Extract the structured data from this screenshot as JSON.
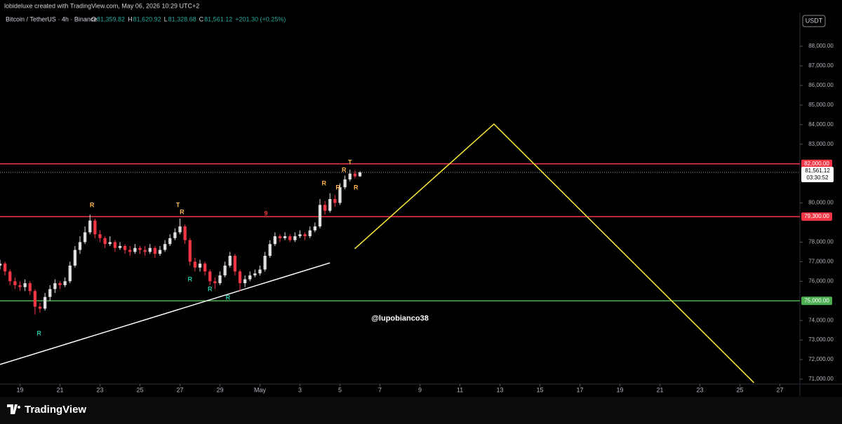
{
  "header": {
    "credit": "lobideluxe created with TradingView.com, May 06, 2026 10:29 UTC+2",
    "symbol": "Bitcoin / TetherUS · 4h · Binance",
    "ohlc": [
      {
        "key": "O",
        "value": "81,359.82"
      },
      {
        "key": "H",
        "value": "81,620.92"
      },
      {
        "key": "L",
        "value": "81,328.68"
      },
      {
        "key": "C",
        "value": "81,561.12"
      }
    ],
    "change": "+201.30 (+0.25%)",
    "currency": "USDT"
  },
  "chart_data": {
    "type": "candlestick",
    "up_color": "#e0e0e0",
    "down_color": "#f23645",
    "x": [
      18,
      18.25,
      18.5,
      18.75,
      19,
      19.25,
      19.5,
      19.75,
      20,
      20.25,
      20.5,
      20.75,
      21,
      21.25,
      21.5,
      21.75,
      22,
      22.25,
      22.5,
      22.75,
      23,
      23.25,
      23.5,
      23.75,
      24,
      24.25,
      24.5,
      24.75,
      25,
      25.25,
      25.5,
      25.75,
      26,
      26.25,
      26.5,
      26.75,
      27,
      27.25,
      27.5,
      27.75,
      28,
      28.25,
      28.5,
      28.75,
      29,
      29.25,
      29.5,
      29.75,
      30,
      30.25,
      30.5,
      30.75,
      31,
      31.25,
      31.5,
      31.75,
      32,
      32.25,
      32.5,
      32.75,
      33,
      33.25,
      33.5,
      33.75,
      34,
      34.25,
      34.5,
      34.75,
      35,
      35.25,
      35.5,
      35.75,
      36
    ],
    "open": [
      76800,
      76900,
      76500,
      76000,
      75800,
      75700,
      75900,
      75500,
      74700,
      74600,
      75200,
      75600,
      75900,
      75800,
      76000,
      76800,
      77600,
      78000,
      78500,
      79100,
      78400,
      78200,
      77900,
      78000,
      77700,
      77800,
      77600,
      77500,
      77700,
      77600,
      77500,
      77700,
      77400,
      77600,
      77900,
      78200,
      78500,
      78800,
      78100,
      77000,
      76700,
      76900,
      76500,
      76000,
      75900,
      76300,
      76800,
      77300,
      76500,
      75900,
      76100,
      76300,
      76400,
      76600,
      77300,
      77900,
      78300,
      78200,
      78300,
      78100,
      78300,
      78400,
      78300,
      78600,
      78800,
      79900,
      79600,
      80200,
      80000,
      80800,
      81200,
      81500,
      81359.82
    ],
    "high": [
      77100,
      77000,
      76600,
      76200,
      76000,
      76100,
      76000,
      75600,
      74900,
      75400,
      75800,
      76100,
      76000,
      76200,
      77000,
      77800,
      78300,
      78800,
      79400,
      79200,
      78600,
      78300,
      78300,
      78100,
      78000,
      77900,
      77800,
      77900,
      77800,
      77800,
      77900,
      77800,
      77800,
      78100,
      78400,
      78700,
      79200,
      78900,
      78200,
      77200,
      77100,
      77000,
      76600,
      76200,
      76500,
      77000,
      77500,
      77400,
      76600,
      76300,
      76500,
      76600,
      76800,
      77500,
      78100,
      78500,
      78400,
      78500,
      78400,
      78500,
      78600,
      78500,
      78800,
      79000,
      80200,
      80100,
      80500,
      80400,
      81000,
      81400,
      81700,
      81650,
      81620.92
    ],
    "low": [
      76600,
      76300,
      75800,
      75600,
      75500,
      75500,
      75300,
      74300,
      74400,
      74500,
      75000,
      75400,
      75600,
      75700,
      75900,
      76700,
      77400,
      77900,
      78400,
      78200,
      78000,
      77700,
      77800,
      77500,
      77600,
      77400,
      77300,
      77400,
      77400,
      77300,
      77400,
      77200,
      77300,
      77500,
      77800,
      78100,
      78400,
      77900,
      76800,
      76500,
      76500,
      76300,
      75800,
      75600,
      75800,
      76200,
      76700,
      76300,
      75500,
      75700,
      76000,
      76200,
      76300,
      76500,
      77200,
      77800,
      78000,
      78100,
      78000,
      78000,
      78200,
      78100,
      78200,
      78500,
      78700,
      79400,
      79500,
      79800,
      79900,
      80700,
      81100,
      81250,
      81328.68
    ],
    "close": [
      76900,
      76500,
      76000,
      75800,
      75700,
      75900,
      75500,
      74700,
      74600,
      75200,
      75600,
      75900,
      75800,
      76000,
      76800,
      77600,
      78000,
      78500,
      79100,
      78400,
      78200,
      77900,
      78000,
      77700,
      77800,
      77600,
      77500,
      77700,
      77600,
      77500,
      77700,
      77400,
      77600,
      77900,
      78200,
      78500,
      78800,
      78100,
      77000,
      76700,
      76900,
      76500,
      76000,
      75900,
      76300,
      76800,
      77300,
      76500,
      75900,
      76100,
      76300,
      76400,
      76600,
      77300,
      77900,
      78300,
      78200,
      78300,
      78100,
      78300,
      78400,
      78300,
      78600,
      78800,
      79900,
      79600,
      80200,
      80000,
      80800,
      81200,
      81500,
      81359.82,
      81561.12
    ],
    "xlim": [
      18,
      58
    ],
    "xticks": [
      19,
      21,
      23,
      25,
      27,
      29,
      {
        "value": 31,
        "label": "May"
      },
      {
        "value": 33,
        "label": "3"
      },
      {
        "value": 35,
        "label": "5"
      },
      {
        "value": 37,
        "label": "7"
      },
      {
        "value": 39,
        "label": "9"
      },
      {
        "value": 41,
        "label": "11"
      },
      {
        "value": 43,
        "label": "13"
      },
      {
        "value": 45,
        "label": "15"
      },
      {
        "value": 47,
        "label": "17"
      },
      {
        "value": 49,
        "label": "19"
      },
      {
        "value": 51,
        "label": "21"
      },
      {
        "value": 53,
        "label": "23"
      },
      {
        "value": 55,
        "label": "25"
      },
      {
        "value": 57,
        "label": "27"
      }
    ],
    "ylim": [
      70750,
      89720
    ],
    "yticks": [
      {
        "value": 71000,
        "label": "71,000.00"
      },
      {
        "value": 72000,
        "label": "72,000.00"
      },
      {
        "value": 73000,
        "label": "73,000.00"
      },
      {
        "value": 74000,
        "label": "74,000.00"
      },
      {
        "value": 76000,
        "label": "76,000.00"
      },
      {
        "value": 77000,
        "label": "77,000.00"
      },
      {
        "value": 78000,
        "label": "78,000.00"
      },
      {
        "value": 80000,
        "label": "80,000.00"
      },
      {
        "value": 83000,
        "label": "83,000.00"
      },
      {
        "value": 84000,
        "label": "84,000.00"
      },
      {
        "value": 85000,
        "label": "85,000.00"
      },
      {
        "value": 86000,
        "label": "86,000.00"
      },
      {
        "value": 87000,
        "label": "87,000.00"
      },
      {
        "value": 88000,
        "label": "88,000.00"
      }
    ],
    "levels": [
      {
        "value": 82000,
        "label": "82,000.00",
        "color": "#f23645"
      },
      {
        "value": 79300,
        "label": "79,300.00",
        "color": "#f23645"
      },
      {
        "value": 75000,
        "label": "75,000.00",
        "color": "#4caf50"
      }
    ],
    "last": {
      "value": 81561.12,
      "label": "81,561.12",
      "countdown": "03:30:52"
    },
    "trendlines": [
      {
        "color": "#ffffff",
        "x": [
          18,
          34.5
        ],
        "y": [
          71750,
          76940
        ]
      },
      {
        "color": "#ffeb3b",
        "x": [
          35.74,
          42.7,
          55.7
        ],
        "y": [
          77660,
          84030,
          70820
        ]
      }
    ],
    "signals": [
      {
        "label": "R",
        "x": 19.95,
        "y": 73330,
        "color": "#26c6a6"
      },
      {
        "label": "R",
        "x": 22.6,
        "y": 79880,
        "color": "#ffb74d"
      },
      {
        "label": "T",
        "x": 26.9,
        "y": 79880,
        "color": "#ffb74d"
      },
      {
        "label": "R",
        "x": 27.1,
        "y": 79520,
        "color": "#ffb74d"
      },
      {
        "label": "R",
        "x": 27.5,
        "y": 76080,
        "color": "#26c6a6"
      },
      {
        "label": "R",
        "x": 28.5,
        "y": 75580,
        "color": "#26c6a6"
      },
      {
        "label": "R",
        "x": 29.4,
        "y": 75150,
        "color": "#26c6a6"
      },
      {
        "label": "R",
        "x": 34.2,
        "y": 80990,
        "color": "#ffb74d"
      },
      {
        "label": "R",
        "x": 34.9,
        "y": 80770,
        "color": "#ffb74d"
      },
      {
        "label": "R",
        "x": 35.2,
        "y": 81660,
        "color": "#ffb74d"
      },
      {
        "label": "T",
        "x": 35.5,
        "y": 82060,
        "color": "#ffb74d"
      },
      {
        "label": "R",
        "x": 35.8,
        "y": 80770,
        "color": "#ffb74d"
      },
      {
        "label": "9",
        "x": 31.3,
        "y": 79450,
        "color": "#f23645"
      }
    ],
    "annotation": {
      "text": "@lupobianco38",
      "x": 38,
      "y": 74100
    }
  },
  "footer": {
    "brand": "TradingView"
  }
}
